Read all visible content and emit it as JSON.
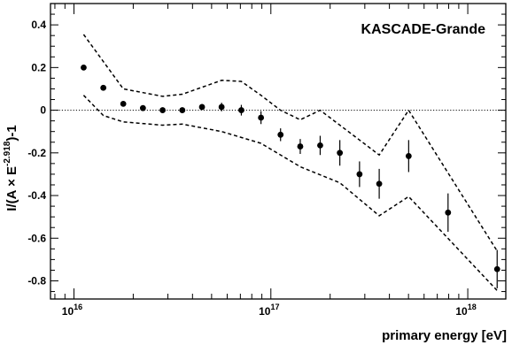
{
  "chart_data": {
    "type": "scatter",
    "annotation": "KASCADE-Grande",
    "xlabel": "primary energy [eV]",
    "ylabel": "I/(A × E^-2.918)-1",
    "ylabel_parts": {
      "prefix": "I/(A × E",
      "exponent": "-2.918",
      "suffix": ")-1"
    },
    "x_scale": "log",
    "xlim": [
      7600000000000000.0,
      1.56e+18
    ],
    "ylim": [
      -0.885,
      0.5
    ],
    "y_ticks": [
      0.4,
      0.2,
      0,
      -0.2,
      -0.4,
      -0.6,
      -0.8
    ],
    "y_tick_labels": [
      "0.4",
      "0.2",
      "0",
      "-0.2",
      "-0.4",
      "-0.6",
      "-0.8"
    ],
    "x_major_ticks": [
      {
        "value": 1e+16,
        "base": "10",
        "exp": "16"
      },
      {
        "value": 1e+17,
        "base": "10",
        "exp": "17"
      },
      {
        "value": 1e+18,
        "base": "10",
        "exp": "18"
      }
    ],
    "reference_line_y": 0,
    "grid": false,
    "legend": "none",
    "series": [
      {
        "style": "points-with-error-bars",
        "color": "#000000",
        "x": [
          1.12e+16,
          1.41e+16,
          1.78e+16,
          2.24e+16,
          2.82e+16,
          3.55e+16,
          4.47e+16,
          5.62e+16,
          7.08e+16,
          8.91e+16,
          1.12e+17,
          1.41e+17,
          1.78e+17,
          2.24e+17,
          2.82e+17,
          3.55e+17,
          5.01e+17,
          7.94e+17,
          1.41e+18
        ],
        "y": [
          0.2,
          0.105,
          0.03,
          0.01,
          0.0,
          0.0,
          0.015,
          0.015,
          0.0,
          -0.035,
          -0.115,
          -0.17,
          -0.165,
          -0.2,
          -0.3,
          -0.345,
          -0.215,
          -0.48,
          -0.745
        ],
        "err": [
          0.0,
          0.0,
          0.0,
          0.0,
          0.0,
          0.008,
          0.01,
          0.02,
          0.025,
          0.03,
          0.03,
          0.035,
          0.045,
          0.06,
          0.06,
          0.07,
          0.075,
          0.09,
          0.09
        ]
      }
    ],
    "band_upper": {
      "style": "dashed",
      "x": [
        1.12e+16,
        1.78e+16,
        2.82e+16,
        3.55e+16,
        5.62e+16,
        7.08e+16,
        8.91e+16,
        1.12e+17,
        1.41e+17,
        1.78e+17,
        2.82e+17,
        3.55e+17,
        5.01e+17,
        1.41e+18
      ],
      "y": [
        0.355,
        0.1,
        0.065,
        0.075,
        0.14,
        0.135,
        0.07,
        0.0,
        -0.045,
        0.0,
        -0.14,
        -0.21,
        0.0,
        -0.66
      ]
    },
    "band_lower": {
      "style": "dashed",
      "x": [
        1.12e+16,
        1.41e+16,
        1.78e+16,
        2.82e+16,
        3.55e+16,
        5.62e+16,
        8.91e+16,
        1.41e+17,
        2.24e+17,
        3.55e+17,
        5.01e+17,
        1.41e+18
      ],
      "y": [
        0.07,
        -0.025,
        -0.055,
        -0.07,
        -0.065,
        -0.1,
        -0.155,
        -0.265,
        -0.34,
        -0.495,
        -0.405,
        -0.845
      ]
    }
  }
}
